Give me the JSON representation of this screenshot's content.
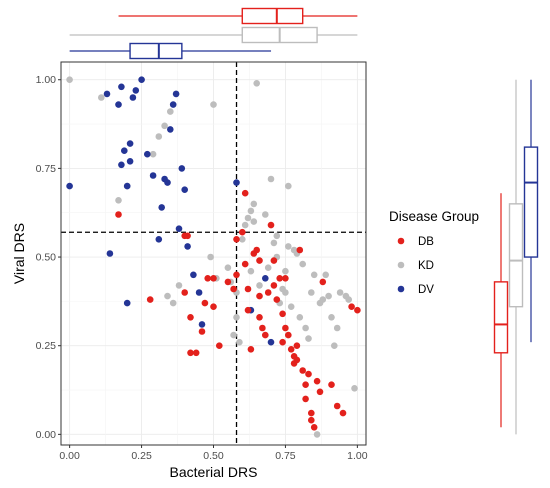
{
  "chart_data": {
    "type": "scatter",
    "xlabel": "Bacterial DRS",
    "ylabel": "Viral DRS",
    "xlim": [
      -0.03,
      1.03
    ],
    "ylim": [
      -0.03,
      1.05
    ],
    "x_ticks": [
      "0.00",
      "0.25",
      "0.50",
      "0.75",
      "1.00"
    ],
    "y_ticks": [
      "0.00",
      "0.25",
      "0.50",
      "0.75",
      "1.00"
    ],
    "grid": true,
    "threshold_lines": {
      "x": 0.58,
      "y": 0.57
    },
    "legend": {
      "title": "Disease Group",
      "placement": "right"
    },
    "colors": {
      "DB": "#e3211c",
      "KD": "#bdbdbd",
      "DV": "#243596"
    },
    "series": [
      {
        "name": "DB",
        "color": "#e3211c",
        "points": [
          [
            0.17,
            0.62
          ],
          [
            0.28,
            0.38
          ],
          [
            0.4,
            0.56
          ],
          [
            0.41,
            0.56
          ],
          [
            0.4,
            0.4
          ],
          [
            0.42,
            0.33
          ],
          [
            0.42,
            0.23
          ],
          [
            0.44,
            0.23
          ],
          [
            0.46,
            0.29
          ],
          [
            0.47,
            0.37
          ],
          [
            0.48,
            0.44
          ],
          [
            0.5,
            0.44
          ],
          [
            0.5,
            0.36
          ],
          [
            0.52,
            0.25
          ],
          [
            0.55,
            0.43
          ],
          [
            0.57,
            0.41
          ],
          [
            0.58,
            0.45
          ],
          [
            0.58,
            0.55
          ],
          [
            0.6,
            0.57
          ],
          [
            0.61,
            0.68
          ],
          [
            0.61,
            0.48
          ],
          [
            0.62,
            0.41
          ],
          [
            0.62,
            0.35
          ],
          [
            0.63,
            0.24
          ],
          [
            0.64,
            0.51
          ],
          [
            0.65,
            0.52
          ],
          [
            0.66,
            0.33
          ],
          [
            0.66,
            0.39
          ],
          [
            0.67,
            0.3
          ],
          [
            0.68,
            0.28
          ],
          [
            0.7,
            0.59
          ],
          [
            0.71,
            0.49
          ],
          [
            0.71,
            0.42
          ],
          [
            0.72,
            0.38
          ],
          [
            0.73,
            0.44
          ],
          [
            0.74,
            0.34
          ],
          [
            0.74,
            0.26
          ],
          [
            0.75,
            0.3
          ],
          [
            0.76,
            0.28
          ],
          [
            0.77,
            0.24
          ],
          [
            0.78,
            0.22
          ],
          [
            0.78,
            0.2
          ],
          [
            0.79,
            0.21
          ],
          [
            0.8,
            0.52
          ],
          [
            0.81,
            0.18
          ],
          [
            0.82,
            0.14
          ],
          [
            0.82,
            0.1
          ],
          [
            0.83,
            0.17
          ],
          [
            0.84,
            0.06
          ],
          [
            0.84,
            0.04
          ],
          [
            0.85,
            0.02
          ],
          [
            0.86,
            0.15
          ],
          [
            0.87,
            0.12
          ],
          [
            0.88,
            0.43
          ],
          [
            0.91,
            0.14
          ],
          [
            0.93,
            0.08
          ],
          [
            0.95,
            0.06
          ],
          [
            0.98,
            0.36
          ],
          [
            1.0,
            0.35
          ],
          [
            0.75,
            0.44
          ],
          [
            0.69,
            0.4
          ],
          [
            0.79,
            0.25
          ],
          [
            0.66,
            0.49
          ]
        ]
      },
      {
        "name": "KD",
        "color": "#bdbdbd",
        "points": [
          [
            0.0,
            1.0
          ],
          [
            0.11,
            0.95
          ],
          [
            0.17,
            0.66
          ],
          [
            0.2,
            0.7
          ],
          [
            0.29,
            0.79
          ],
          [
            0.31,
            0.84
          ],
          [
            0.33,
            0.87
          ],
          [
            0.35,
            0.91
          ],
          [
            0.37,
            0.96
          ],
          [
            0.5,
            0.93
          ],
          [
            0.65,
            0.99
          ],
          [
            0.34,
            0.39
          ],
          [
            0.36,
            0.37
          ],
          [
            0.38,
            0.42
          ],
          [
            0.49,
            0.5
          ],
          [
            0.51,
            0.44
          ],
          [
            0.55,
            0.47
          ],
          [
            0.57,
            0.28
          ],
          [
            0.58,
            0.33
          ],
          [
            0.58,
            0.4
          ],
          [
            0.6,
            0.55
          ],
          [
            0.61,
            0.59
          ],
          [
            0.62,
            0.61
          ],
          [
            0.63,
            0.63
          ],
          [
            0.64,
            0.65
          ],
          [
            0.64,
            0.6
          ],
          [
            0.66,
            0.42
          ],
          [
            0.69,
            0.47
          ],
          [
            0.7,
            0.72
          ],
          [
            0.71,
            0.54
          ],
          [
            0.72,
            0.5
          ],
          [
            0.73,
            0.37
          ],
          [
            0.74,
            0.41
          ],
          [
            0.75,
            0.46
          ],
          [
            0.76,
            0.7
          ],
          [
            0.76,
            0.53
          ],
          [
            0.77,
            0.36
          ],
          [
            0.78,
            0.52
          ],
          [
            0.79,
            0.51
          ],
          [
            0.8,
            0.33
          ],
          [
            0.81,
            0.48
          ],
          [
            0.82,
            0.3
          ],
          [
            0.83,
            0.27
          ],
          [
            0.84,
            0.4
          ],
          [
            0.85,
            0.45
          ],
          [
            0.86,
            0.0
          ],
          [
            0.87,
            0.37
          ],
          [
            0.88,
            0.38
          ],
          [
            0.89,
            0.45
          ],
          [
            0.9,
            0.39
          ],
          [
            0.91,
            0.33
          ],
          [
            0.92,
            0.25
          ],
          [
            0.93,
            0.3
          ],
          [
            0.94,
            0.4
          ],
          [
            0.96,
            0.39
          ],
          [
            0.97,
            0.38
          ],
          [
            0.99,
            0.13
          ],
          [
            0.68,
            0.62
          ],
          [
            0.72,
            0.56
          ],
          [
            0.63,
            0.46
          ],
          [
            0.56,
            0.43
          ],
          [
            0.75,
            0.4
          ],
          [
            0.59,
            0.26
          ]
        ]
      },
      {
        "name": "DV",
        "color": "#243596",
        "points": [
          [
            0.0,
            0.7
          ],
          [
            0.13,
            0.96
          ],
          [
            0.14,
            0.51
          ],
          [
            0.17,
            0.93
          ],
          [
            0.18,
            0.98
          ],
          [
            0.18,
            0.76
          ],
          [
            0.19,
            0.8
          ],
          [
            0.2,
            0.37
          ],
          [
            0.2,
            0.7
          ],
          [
            0.21,
            0.82
          ],
          [
            0.21,
            0.77
          ],
          [
            0.22,
            0.95
          ],
          [
            0.23,
            0.97
          ],
          [
            0.25,
            1.0
          ],
          [
            0.27,
            0.79
          ],
          [
            0.29,
            0.73
          ],
          [
            0.31,
            0.55
          ],
          [
            0.32,
            0.64
          ],
          [
            0.33,
            0.72
          ],
          [
            0.34,
            0.71
          ],
          [
            0.35,
            0.86
          ],
          [
            0.36,
            0.93
          ],
          [
            0.37,
            0.96
          ],
          [
            0.38,
            0.58
          ],
          [
            0.39,
            0.75
          ],
          [
            0.4,
            0.69
          ],
          [
            0.41,
            0.53
          ],
          [
            0.43,
            0.45
          ],
          [
            0.45,
            0.4
          ],
          [
            0.46,
            0.31
          ],
          [
            0.58,
            0.71
          ],
          [
            0.63,
            0.35
          ],
          [
            0.68,
            0.44
          ],
          [
            0.7,
            0.26
          ]
        ]
      }
    ],
    "marginal_boxplots": {
      "x": [
        {
          "name": "DB",
          "min": 0.17,
          "q1": 0.6,
          "median": 0.72,
          "q3": 0.81,
          "max": 1.0
        },
        {
          "name": "KD",
          "min": 0.0,
          "q1": 0.6,
          "median": 0.73,
          "q3": 0.86,
          "max": 1.0
        },
        {
          "name": "DV",
          "min": 0.0,
          "q1": 0.21,
          "median": 0.31,
          "q3": 0.39,
          "max": 0.7
        }
      ],
      "y": [
        {
          "name": "DB",
          "min": 0.02,
          "q1": 0.23,
          "median": 0.31,
          "q3": 0.43,
          "max": 0.68
        },
        {
          "name": "KD",
          "min": 0.0,
          "q1": 0.36,
          "median": 0.49,
          "q3": 0.65,
          "max": 1.0
        },
        {
          "name": "DV",
          "min": 0.26,
          "q1": 0.5,
          "median": 0.71,
          "q3": 0.81,
          "max": 1.0
        }
      ]
    }
  }
}
